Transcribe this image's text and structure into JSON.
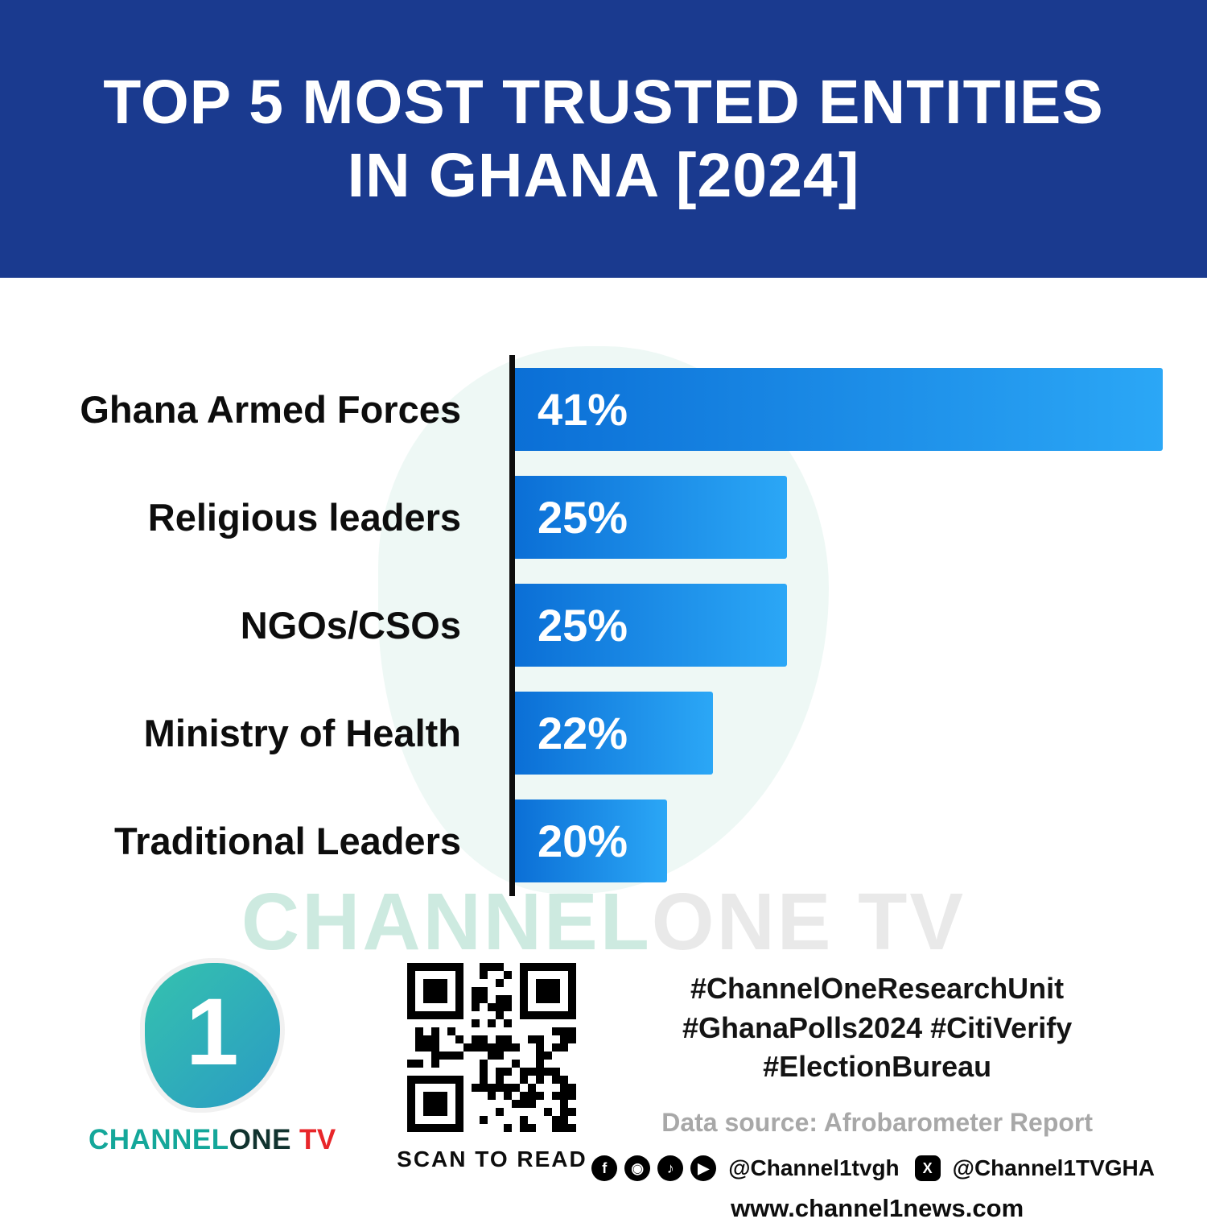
{
  "header": {
    "title_line1": "TOP 5 MOST TRUSTED ENTITIES",
    "title_line2": "IN GHANA [2024]"
  },
  "chart_data": {
    "type": "bar",
    "orientation": "horizontal",
    "title": "TOP 5 MOST TRUSTED ENTITIES IN GHANA [2024]",
    "categories": [
      "Ghana Armed Forces",
      "Religious leaders",
      "NGOs/CSOs",
      "Ministry of Health",
      "Traditional Leaders"
    ],
    "values": [
      41,
      25,
      25,
      22,
      20
    ],
    "value_labels": [
      "41%",
      "25%",
      "25%",
      "22%",
      "20%"
    ],
    "unit": "%",
    "bar_width_fractions": [
      1.0,
      0.42,
      0.42,
      0.305,
      0.235
    ],
    "bar_color_start": "#0b6fd6",
    "bar_color_end": "#2ba7f6",
    "axis_color": "#0d0d0d",
    "grid": false,
    "legend": "none"
  },
  "watermark": {
    "part1": "CHANNEL",
    "part2": "ONE TV"
  },
  "footer": {
    "logo_numeral": "1",
    "logo_channel": "CHANNEL",
    "logo_one": "ONE",
    "logo_tv": "TV",
    "qr_caption": "SCAN TO READ",
    "hashtags_line1": "#ChannelOneResearchUnit",
    "hashtags_line2": "#GhanaPolls2024 #CitiVerify",
    "hashtags_line3": "#ElectionBureau",
    "data_source": "Data source: Afrobarometer Report",
    "social_handle_main": "@Channel1tvgh",
    "social_handle_x": "@Channel1TVGHA",
    "website": "www.channel1news.com",
    "icon_glyphs": {
      "facebook": "f",
      "instagram": "◉",
      "tiktok": "♪",
      "youtube": "▶",
      "x": "X"
    }
  },
  "colors": {
    "header_bg": "#1a3a8f",
    "label_text": "#0d0d0d",
    "channel_teal": "#14a79a",
    "tv_red": "#e8262a"
  }
}
